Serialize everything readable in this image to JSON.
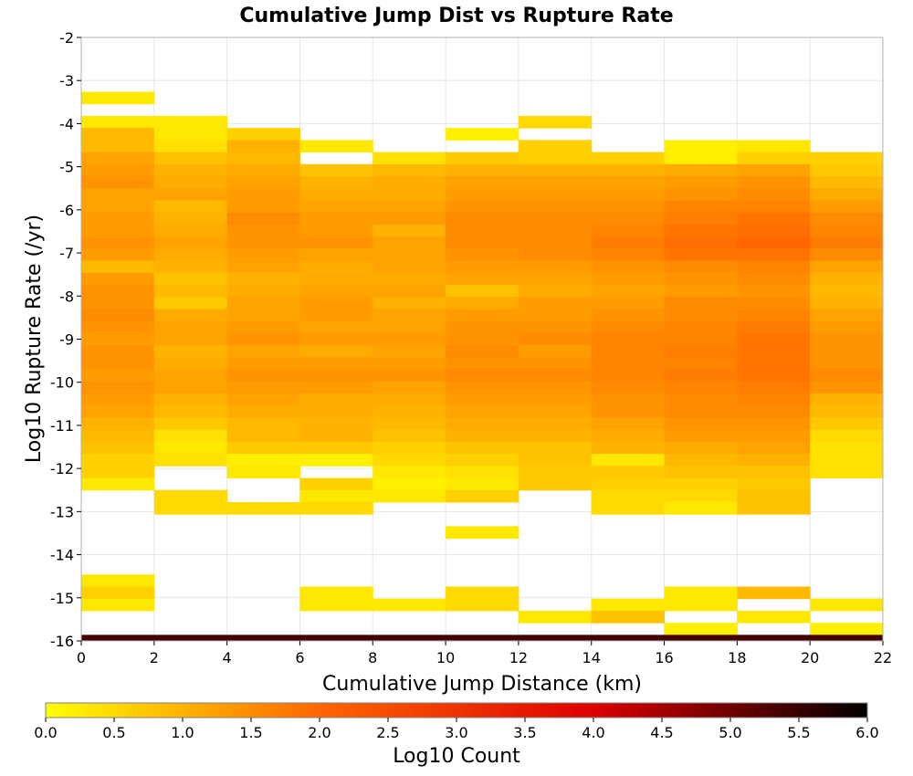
{
  "chart_data": {
    "type": "heatmap",
    "title": "Cumulative Jump Dist vs Rupture Rate",
    "xlabel": "Cumulative Jump Distance (km)",
    "ylabel": "Log10 Rupture Rate (/yr)",
    "xlim": [
      0,
      22
    ],
    "ylim": [
      -16,
      -2
    ],
    "x_bin_width": 2,
    "y_bin_width": 0.28,
    "x_ticks": [
      "0",
      "2",
      "4",
      "6",
      "8",
      "10",
      "12",
      "14",
      "16",
      "18",
      "20",
      "22"
    ],
    "y_ticks": [
      "-2",
      "-3",
      "-4",
      "-5",
      "-6",
      "-7",
      "-8",
      "-9",
      "-10",
      "-11",
      "-12",
      "-13",
      "-14",
      "-15",
      "-16"
    ],
    "x_bin_starts": [
      0,
      2,
      4,
      6,
      8,
      10,
      12,
      14,
      16,
      18,
      20
    ],
    "y_bin_bottom_start": -16.14,
    "grid": true,
    "colorbar": {
      "label": "Log10 Count",
      "range": [
        0,
        6
      ],
      "colors": [
        "#ffff00",
        "#ff6600",
        "#dd0000",
        "#000000"
      ],
      "ticks": [
        "0.0",
        "0.5",
        "1.0",
        "1.5",
        "2.0",
        "2.5",
        "3.0",
        "3.5",
        "4.0",
        "4.5",
        "5.0",
        "5.5",
        "6.0"
      ]
    },
    "note_z": "z rows listed from the top bin (about -2.2) downward to the bottom bin (-16.0); null = empty bin",
    "z": [
      [
        null,
        null,
        null,
        null,
        null,
        null,
        null,
        null,
        null,
        null,
        null
      ],
      [
        null,
        null,
        null,
        null,
        null,
        null,
        null,
        null,
        null,
        null,
        null
      ],
      [
        null,
        null,
        null,
        null,
        null,
        null,
        null,
        null,
        null,
        null,
        null
      ],
      [
        null,
        null,
        null,
        null,
        null,
        null,
        null,
        null,
        null,
        null,
        null
      ],
      [
        0.3,
        null,
        null,
        null,
        null,
        null,
        null,
        null,
        null,
        null,
        null
      ],
      [
        null,
        null,
        null,
        null,
        null,
        null,
        null,
        null,
        null,
        null,
        null
      ],
      [
        0.3,
        0.3,
        null,
        null,
        null,
        null,
        0.5,
        null,
        null,
        null,
        null
      ],
      [
        0.9,
        0.3,
        0.6,
        null,
        null,
        0.2,
        null,
        null,
        null,
        null,
        null
      ],
      [
        0.9,
        0.4,
        1.0,
        0.3,
        null,
        null,
        0.6,
        null,
        0.2,
        0.3,
        null
      ],
      [
        1.2,
        0.8,
        0.9,
        null,
        0.4,
        0.7,
        0.6,
        0.6,
        0.2,
        0.6,
        0.6
      ],
      [
        1.3,
        1.0,
        1.1,
        0.8,
        0.9,
        1.0,
        1.0,
        1.0,
        1.1,
        1.2,
        0.7
      ],
      [
        1.4,
        1.1,
        1.2,
        1.0,
        1.1,
        1.2,
        1.2,
        1.2,
        1.3,
        1.4,
        0.9
      ],
      [
        1.2,
        1.2,
        1.3,
        1.1,
        1.1,
        1.3,
        1.3,
        1.3,
        1.4,
        1.5,
        1.1
      ],
      [
        1.2,
        0.9,
        1.3,
        1.2,
        1.2,
        1.4,
        1.4,
        1.4,
        1.6,
        1.6,
        1.3
      ],
      [
        1.3,
        1.0,
        1.5,
        1.3,
        1.3,
        1.5,
        1.5,
        1.5,
        1.7,
        1.8,
        1.5
      ],
      [
        1.3,
        1.1,
        1.4,
        1.3,
        1.0,
        1.5,
        1.5,
        1.6,
        1.8,
        1.9,
        1.6
      ],
      [
        1.4,
        1.2,
        1.4,
        1.4,
        1.2,
        1.5,
        1.5,
        1.7,
        1.9,
        2.0,
        1.7
      ],
      [
        1.3,
        1.1,
        1.3,
        1.2,
        1.2,
        1.4,
        1.5,
        1.6,
        1.8,
        1.8,
        1.5
      ],
      [
        0.9,
        1.0,
        1.2,
        1.1,
        1.2,
        1.3,
        1.3,
        1.4,
        1.5,
        1.6,
        1.2
      ],
      [
        1.3,
        0.8,
        1.0,
        1.1,
        1.1,
        1.2,
        1.2,
        1.3,
        1.4,
        1.5,
        1.0
      ],
      [
        1.4,
        0.9,
        1.1,
        1.2,
        1.2,
        0.8,
        1.1,
        1.2,
        1.3,
        1.4,
        0.9
      ],
      [
        1.4,
        0.7,
        1.2,
        1.3,
        1.0,
        1.1,
        1.3,
        1.3,
        1.5,
        1.5,
        1.0
      ],
      [
        1.5,
        1.1,
        1.2,
        1.3,
        1.2,
        1.3,
        1.3,
        1.4,
        1.5,
        1.6,
        1.2
      ],
      [
        1.4,
        1.2,
        1.3,
        1.2,
        1.2,
        1.4,
        1.4,
        1.5,
        1.6,
        1.7,
        1.3
      ],
      [
        1.3,
        1.2,
        1.4,
        1.3,
        1.3,
        1.4,
        1.5,
        1.6,
        1.6,
        1.8,
        1.4
      ],
      [
        1.4,
        1.0,
        1.2,
        1.1,
        1.2,
        1.5,
        1.3,
        1.6,
        1.7,
        1.8,
        1.4
      ],
      [
        1.4,
        1.1,
        1.3,
        1.3,
        1.3,
        1.4,
        1.4,
        1.6,
        1.6,
        1.8,
        1.4
      ],
      [
        1.3,
        1.2,
        1.4,
        1.4,
        1.4,
        1.5,
        1.5,
        1.6,
        1.7,
        1.8,
        1.5
      ],
      [
        1.4,
        1.2,
        1.3,
        1.3,
        1.2,
        1.4,
        1.4,
        1.5,
        1.6,
        1.7,
        1.4
      ],
      [
        1.3,
        1.0,
        1.2,
        1.1,
        1.1,
        1.3,
        1.3,
        1.4,
        1.5,
        1.6,
        1.0
      ],
      [
        1.2,
        0.9,
        1.1,
        1.1,
        1.0,
        1.2,
        1.2,
        1.4,
        1.5,
        1.5,
        0.9
      ],
      [
        1.0,
        0.7,
        0.9,
        1.0,
        0.9,
        1.1,
        1.1,
        1.2,
        1.4,
        1.4,
        0.7
      ],
      [
        0.9,
        0.4,
        0.9,
        1.0,
        0.8,
        1.0,
        1.0,
        1.1,
        1.3,
        1.3,
        0.5
      ],
      [
        0.8,
        0.3,
        0.7,
        0.7,
        0.6,
        0.8,
        0.8,
        1.0,
        1.1,
        1.2,
        0.4
      ],
      [
        0.6,
        0.4,
        0.2,
        0.2,
        0.5,
        0.6,
        0.8,
        0.3,
        0.9,
        1.0,
        0.4
      ],
      [
        0.6,
        null,
        0.3,
        null,
        0.3,
        0.4,
        0.7,
        0.7,
        0.8,
        0.8,
        0.4
      ],
      [
        0.3,
        null,
        null,
        0.6,
        0.2,
        0.3,
        0.7,
        0.6,
        0.6,
        0.7,
        null
      ],
      [
        null,
        0.5,
        null,
        0.3,
        0.3,
        0.6,
        null,
        0.5,
        0.5,
        0.8,
        null
      ],
      [
        null,
        0.5,
        0.5,
        0.5,
        null,
        null,
        null,
        0.5,
        0.3,
        0.8,
        null
      ],
      [
        null,
        null,
        null,
        null,
        null,
        null,
        null,
        null,
        null,
        null,
        null
      ],
      [
        null,
        null,
        null,
        null,
        null,
        0.3,
        null,
        null,
        null,
        null,
        null
      ],
      [
        null,
        null,
        null,
        null,
        null,
        null,
        null,
        null,
        null,
        null,
        null
      ],
      [
        null,
        null,
        null,
        null,
        null,
        null,
        null,
        null,
        null,
        null,
        null
      ],
      [
        null,
        null,
        null,
        null,
        null,
        null,
        null,
        null,
        null,
        null,
        null
      ],
      [
        0.3,
        null,
        null,
        null,
        null,
        null,
        null,
        null,
        null,
        null,
        null
      ],
      [
        0.6,
        null,
        null,
        0.3,
        null,
        0.5,
        null,
        null,
        0.3,
        0.9,
        null
      ],
      [
        0.3,
        null,
        null,
        0.3,
        0.3,
        0.5,
        null,
        0.3,
        0.3,
        null,
        0.3
      ],
      [
        null,
        null,
        null,
        null,
        null,
        null,
        0.3,
        0.8,
        null,
        0.3,
        null
      ],
      [
        null,
        null,
        null,
        null,
        null,
        null,
        null,
        null,
        0.2,
        null,
        0.2
      ],
      [
        5.4,
        5.4,
        5.4,
        5.4,
        5.4,
        5.4,
        5.4,
        5.4,
        5.4,
        5.4,
        5.4
      ]
    ]
  }
}
